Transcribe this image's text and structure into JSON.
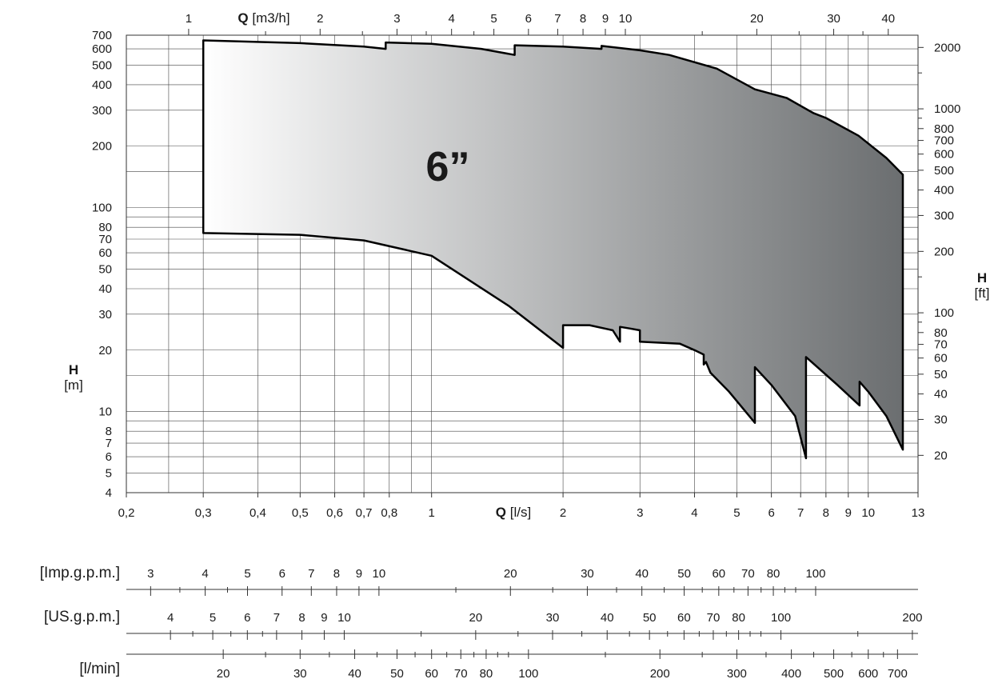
{
  "chart_data": {
    "type": "area",
    "label": "6”",
    "x_axis": {
      "label_bold": "Q",
      "label_unit": "[l/s]",
      "scale": "log",
      "range": [
        0.2,
        13
      ],
      "ticks": [
        0.2,
        0.3,
        0.4,
        0.5,
        0.6,
        0.7,
        0.8,
        1,
        2,
        3,
        4,
        5,
        6,
        7,
        8,
        9,
        10,
        13
      ],
      "tick_labels": [
        "0,2",
        "0,3",
        "0,4",
        "0,5",
        "0,6",
        "0,7",
        "0,8",
        "1",
        "2",
        "3",
        "4",
        "5",
        "6",
        "7",
        "8",
        "9",
        "10",
        "13"
      ]
    },
    "x_top_axis": {
      "label_bold": "Q",
      "label_unit": "[m3/h]",
      "ticks": [
        1,
        2,
        3,
        4,
        5,
        6,
        7,
        8,
        9,
        10,
        20,
        30,
        40
      ],
      "tick_labels": [
        "1",
        "2",
        "3",
        "4",
        "5",
        "6",
        "7",
        "8",
        "9",
        "10",
        "20",
        "30",
        "40"
      ]
    },
    "y_axis": {
      "label_bold": "H",
      "label_unit": "[m]",
      "scale": "log",
      "range": [
        4,
        700
      ],
      "ticks": [
        4,
        5,
        6,
        7,
        8,
        10,
        20,
        30,
        40,
        50,
        60,
        70,
        80,
        100,
        200,
        300,
        400,
        500,
        600,
        700
      ],
      "tick_labels": [
        "4",
        "5",
        "6",
        "7",
        "8",
        "10",
        "20",
        "30",
        "40",
        "50",
        "60",
        "70",
        "80",
        "100",
        "200",
        "300",
        "400",
        "500",
        "600",
        "700"
      ]
    },
    "y_right_axis": {
      "label_bold": "H",
      "label_unit": "[ft]",
      "ticks": [
        20,
        30,
        40,
        50,
        60,
        70,
        80,
        100,
        200,
        300,
        400,
        500,
        600,
        700,
        800,
        1000,
        2000
      ],
      "tick_labels": [
        "20",
        "30",
        "40",
        "50",
        "60",
        "70",
        "80",
        "100",
        "200",
        "300",
        "400",
        "500",
        "600",
        "700",
        "800",
        "1000",
        "2000"
      ]
    },
    "grid": true,
    "envelope_upper": [
      [
        0.3,
        660
      ],
      [
        0.5,
        640
      ],
      [
        0.7,
        615
      ],
      [
        0.785,
        600
      ],
      [
        0.785,
        645
      ],
      [
        1.0,
        635
      ],
      [
        1.3,
        600
      ],
      [
        1.55,
        560
      ],
      [
        1.55,
        625
      ],
      [
        2.0,
        615
      ],
      [
        2.45,
        600
      ],
      [
        2.45,
        620
      ],
      [
        3.0,
        590
      ],
      [
        3.5,
        560
      ],
      [
        4.5,
        480
      ],
      [
        5.5,
        380
      ],
      [
        6.5,
        345
      ],
      [
        7.5,
        290
      ],
      [
        8.0,
        275
      ],
      [
        9.5,
        225
      ],
      [
        11.0,
        175
      ],
      [
        12.0,
        145
      ]
    ],
    "envelope_lower": [
      [
        12.0,
        6.5
      ],
      [
        11.0,
        9.5
      ],
      [
        10.0,
        12.5
      ],
      [
        9.55,
        14.0
      ],
      [
        9.55,
        10.7
      ],
      [
        8.5,
        13.5
      ],
      [
        7.2,
        18.5
      ],
      [
        7.2,
        5.9
      ],
      [
        6.8,
        9.5
      ],
      [
        6.0,
        13.5
      ],
      [
        5.5,
        16.5
      ],
      [
        5.5,
        8.8
      ],
      [
        4.8,
        12.5
      ],
      [
        4.35,
        15.5
      ],
      [
        4.25,
        17.5
      ],
      [
        4.2,
        17.0
      ],
      [
        4.2,
        19.0
      ],
      [
        4.0,
        20.0
      ],
      [
        3.7,
        21.5
      ],
      [
        3.0,
        22.0
      ],
      [
        3.0,
        25.0
      ],
      [
        2.85,
        25.5
      ],
      [
        2.7,
        26.0
      ],
      [
        2.7,
        22.0
      ],
      [
        2.6,
        25.0
      ],
      [
        2.3,
        26.5
      ],
      [
        2.0,
        26.5
      ],
      [
        2.0,
        20.5
      ],
      [
        1.5,
        33.0
      ],
      [
        1.0,
        58.0
      ],
      [
        0.7,
        69.0
      ],
      [
        0.5,
        73.5
      ],
      [
        0.3,
        75.0
      ]
    ],
    "secondary_axes": [
      {
        "label": "[Imp.g.p.m.]",
        "ticks": [
          3,
          4,
          5,
          6,
          7,
          8,
          9,
          10,
          20,
          30,
          40,
          50,
          60,
          70,
          80,
          100
        ],
        "tick_labels": [
          "3",
          "4",
          "5",
          "6",
          "7",
          "8",
          "9",
          "10",
          "20",
          "30",
          "40",
          "50",
          "60",
          "70",
          "80",
          "100"
        ]
      },
      {
        "label": "[US.g.p.m.]",
        "ticks": [
          4,
          5,
          6,
          7,
          8,
          9,
          10,
          20,
          30,
          40,
          50,
          60,
          70,
          80,
          100,
          200
        ],
        "tick_labels": [
          "4",
          "5",
          "6",
          "7",
          "8",
          "9",
          "10",
          "20",
          "30",
          "40",
          "50",
          "60",
          "70",
          "80",
          "100",
          "200"
        ]
      },
      {
        "label": "[l/min]",
        "ticks": [
          20,
          30,
          40,
          50,
          60,
          70,
          80,
          100,
          200,
          300,
          400,
          500,
          600,
          700
        ],
        "tick_labels": [
          "20",
          "30",
          "40",
          "50",
          "60",
          "70",
          "80",
          "100",
          "200",
          "300",
          "400",
          "500",
          "600",
          "700"
        ]
      }
    ]
  }
}
